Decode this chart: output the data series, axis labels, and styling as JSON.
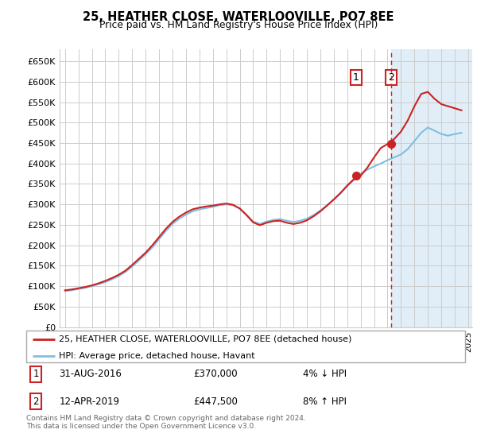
{
  "title": "25, HEATHER CLOSE, WATERLOOVILLE, PO7 8EE",
  "subtitle": "Price paid vs. HM Land Registry's House Price Index (HPI)",
  "legend_line1": "25, HEATHER CLOSE, WATERLOOVILLE, PO7 8EE (detached house)",
  "legend_line2": "HPI: Average price, detached house, Havant",
  "annotation1_date": "31-AUG-2016",
  "annotation1_price": "£370,000",
  "annotation1_pct": "4% ↓ HPI",
  "annotation2_date": "12-APR-2019",
  "annotation2_price": "£447,500",
  "annotation2_pct": "8% ↑ HPI",
  "footer": "Contains HM Land Registry data © Crown copyright and database right 2024.\nThis data is licensed under the Open Government Licence v3.0.",
  "sale1_year": 2016.667,
  "sale2_year": 2019.278,
  "sale1_value": 370000,
  "sale2_value": 447500,
  "ylim": [
    0,
    680000
  ],
  "yticks": [
    0,
    50000,
    100000,
    150000,
    200000,
    250000,
    300000,
    350000,
    400000,
    450000,
    500000,
    550000,
    600000,
    650000
  ],
  "hpi_color": "#7fbfdf",
  "price_color": "#cc2222",
  "background_color": "#ffffff",
  "grid_color": "#cccccc",
  "shade_color": "#daeaf5",
  "years": [
    1995,
    1995.5,
    1996,
    1996.5,
    1997,
    1997.5,
    1998,
    1998.5,
    1999,
    1999.5,
    2000,
    2000.5,
    2001,
    2001.5,
    2002,
    2002.5,
    2003,
    2003.5,
    2004,
    2004.5,
    2005,
    2005.5,
    2006,
    2006.5,
    2007,
    2007.5,
    2008,
    2008.5,
    2009,
    2009.5,
    2010,
    2010.5,
    2011,
    2011.5,
    2012,
    2012.5,
    2013,
    2013.5,
    2014,
    2014.5,
    2015,
    2015.5,
    2016,
    2016.5,
    2017,
    2017.5,
    2018,
    2018.5,
    2019,
    2019.5,
    2020,
    2020.5,
    2021,
    2021.5,
    2022,
    2022.5,
    2023,
    2023.5,
    2024,
    2024.5
  ],
  "hpi_values": [
    88000,
    90000,
    93000,
    96000,
    100000,
    105000,
    110000,
    117000,
    125000,
    135000,
    148000,
    163000,
    178000,
    195000,
    215000,
    235000,
    252000,
    265000,
    275000,
    283000,
    288000,
    291000,
    294000,
    298000,
    300000,
    298000,
    290000,
    275000,
    258000,
    252000,
    258000,
    262000,
    264000,
    260000,
    257000,
    260000,
    265000,
    274000,
    285000,
    298000,
    312000,
    327000,
    345000,
    360000,
    375000,
    385000,
    393000,
    400000,
    408000,
    415000,
    422000,
    435000,
    455000,
    475000,
    488000,
    480000,
    472000,
    468000,
    472000,
    475000
  ],
  "price_values": [
    90000,
    92000,
    95000,
    98000,
    102000,
    107000,
    113000,
    120000,
    128000,
    138000,
    152000,
    167000,
    182000,
    200000,
    220000,
    240000,
    257000,
    270000,
    280000,
    288000,
    292000,
    295000,
    297000,
    300000,
    302000,
    299000,
    290000,
    274000,
    256000,
    249000,
    255000,
    259000,
    260000,
    255000,
    252000,
    255000,
    261000,
    271000,
    283000,
    297000,
    312000,
    328000,
    346000,
    362000,
    370000,
    390000,
    415000,
    438000,
    447500,
    460000,
    478000,
    505000,
    540000,
    570000,
    575000,
    558000,
    545000,
    540000,
    535000,
    530000
  ]
}
